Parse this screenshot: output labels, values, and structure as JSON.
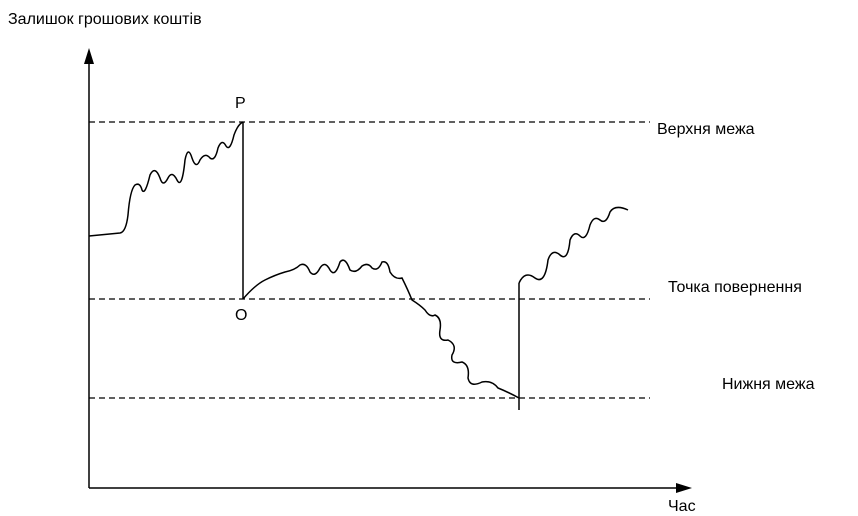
{
  "y_axis_label": "Залишок грошових коштів",
  "x_axis_label": "Час",
  "upper_limit_label": "Верхня межа",
  "return_point_label": "Точка повернення",
  "lower_limit_label": "Нижня межа",
  "point_p": "P",
  "point_o": "O"
}
